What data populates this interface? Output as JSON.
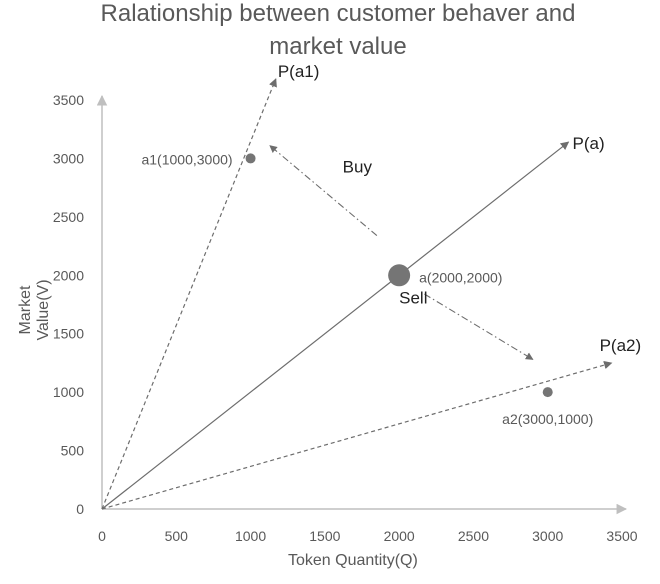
{
  "chart_data": {
    "type": "scatter",
    "title_lines": [
      "Ralationship between customer behaver and",
      "market value"
    ],
    "xlabel": "Token Quantity(Q)",
    "ylabel": "Market Value(V)",
    "xlim": [
      0,
      3500
    ],
    "ylim": [
      0,
      3500
    ],
    "xticks": [
      0,
      500,
      1000,
      1500,
      2000,
      2500,
      3000,
      3500
    ],
    "yticks": [
      0,
      500,
      1000,
      1500,
      2000,
      2500,
      3000,
      3500
    ],
    "points": [
      {
        "label": "a1(1000,3000)",
        "x": 1000,
        "y": 3000,
        "size": "small"
      },
      {
        "label": "a(2000,2000)",
        "x": 2000,
        "y": 2000,
        "size": "large"
      },
      {
        "label": "a2(3000,1000)",
        "x": 3000,
        "y": 1000,
        "size": "small"
      }
    ],
    "rays": [
      {
        "name": "P(a1)",
        "from": [
          0,
          0
        ],
        "to": [
          1170,
          3680
        ],
        "style": "dashed"
      },
      {
        "name": "P(a)",
        "from": [
          0,
          0
        ],
        "to": [
          3140,
          3140
        ],
        "style": "solid"
      },
      {
        "name": "P(a2)",
        "from": [
          0,
          0
        ],
        "to": [
          3430,
          1250
        ],
        "style": "dashed"
      }
    ],
    "movement_arrows": [
      {
        "label": "Buy",
        "from": [
          1850,
          2340
        ],
        "to": [
          1130,
          3110
        ]
      },
      {
        "label": "Sell",
        "from": [
          2170,
          1840
        ],
        "to": [
          2900,
          1280
        ]
      }
    ],
    "grid": false,
    "colors": {
      "axis": "#bfbfbf",
      "text": "#595959",
      "series": "#6d6d6d",
      "point": "#757575"
    }
  }
}
